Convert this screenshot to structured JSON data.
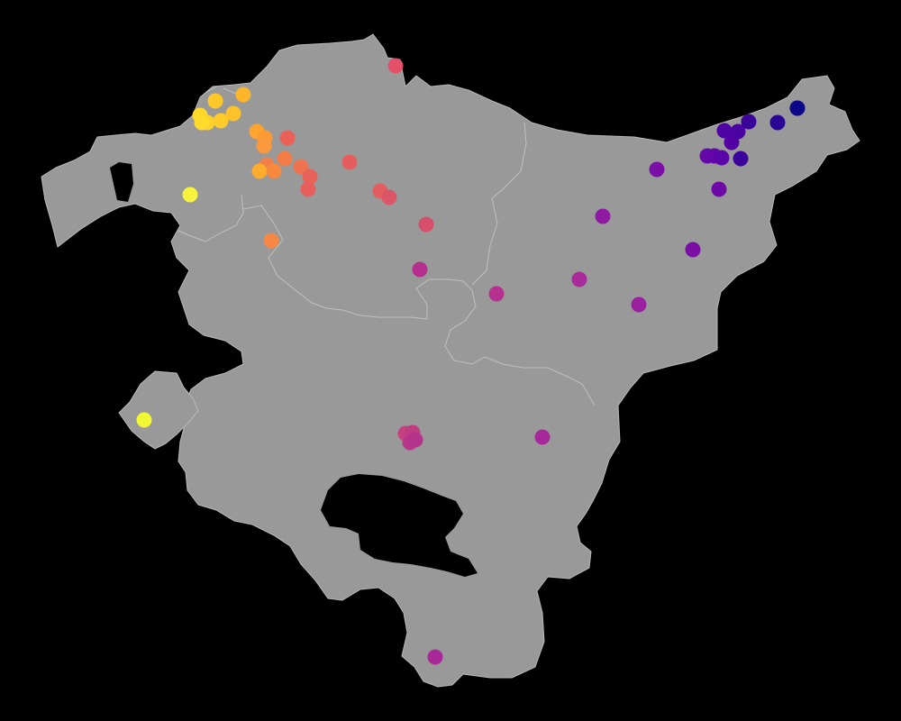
{
  "map": {
    "background": "#000000",
    "land_color": "#999999",
    "border_color": "#c4c4c4",
    "color_scale": "plasma",
    "points": [
      {
        "id": "p01",
        "color": "#e5506b"
      },
      {
        "id": "p02",
        "color": "#fdb52a"
      },
      {
        "id": "p03",
        "color": "#fec82a"
      },
      {
        "id": "p04",
        "color": "#fed82a"
      },
      {
        "id": "p05",
        "color": "#fdd22a"
      },
      {
        "id": "p06",
        "color": "#feda2a"
      },
      {
        "id": "p07",
        "color": "#fdcb2a"
      },
      {
        "id": "p08",
        "color": "#fdc12a"
      },
      {
        "id": "p09",
        "color": "#fda52e"
      },
      {
        "id": "p10",
        "color": "#fc9a36"
      },
      {
        "id": "p11",
        "color": "#fb9a3c"
      },
      {
        "id": "p12",
        "color": "#ea6158"
      },
      {
        "id": "p13",
        "color": "#f18048"
      },
      {
        "id": "p14",
        "color": "#fdad2d"
      },
      {
        "id": "p15",
        "color": "#f88a40"
      },
      {
        "id": "p16",
        "color": "#f47c46"
      },
      {
        "id": "p17",
        "color": "#ef7350"
      },
      {
        "id": "p18",
        "color": "#e7635a"
      },
      {
        "id": "p19",
        "color": "#e65f5c"
      },
      {
        "id": "p20",
        "color": "#e65d5e"
      },
      {
        "id": "p21",
        "color": "#e35d60"
      },
      {
        "id": "p22",
        "color": "#db5568"
      },
      {
        "id": "p23",
        "color": "#d6506c"
      },
      {
        "id": "p24",
        "color": "#f7f23c"
      },
      {
        "id": "p25",
        "color": "#f68744"
      },
      {
        "id": "p26",
        "color": "#b62f8f"
      },
      {
        "id": "p27",
        "color": "#b5308f"
      },
      {
        "id": "p28",
        "color": "#a92b9b"
      },
      {
        "id": "p29",
        "color": "#9a209f"
      },
      {
        "id": "p30",
        "color": "#8e19a2"
      },
      {
        "id": "p31",
        "color": "#7a0ea5"
      },
      {
        "id": "p32",
        "color": "#7a0ea6"
      },
      {
        "id": "p33",
        "color": "#6e09a7"
      },
      {
        "id": "p34",
        "color": "#6508a8"
      },
      {
        "id": "p35",
        "color": "#6306a8"
      },
      {
        "id": "p36",
        "color": "#5b05a8"
      },
      {
        "id": "p37",
        "color": "#5301a5"
      },
      {
        "id": "p38",
        "color": "#4e03a3"
      },
      {
        "id": "p39",
        "color": "#4b03a2"
      },
      {
        "id": "p40",
        "color": "#3c049b"
      },
      {
        "id": "p41",
        "color": "#3a049a"
      },
      {
        "id": "p42",
        "color": "#290593"
      },
      {
        "id": "p43",
        "color": "#170b88"
      },
      {
        "id": "p44",
        "color": "#0d0887"
      },
      {
        "id": "p45",
        "color": "#f1f833"
      },
      {
        "id": "p46",
        "color": "#c5407e"
      },
      {
        "id": "p47",
        "color": "#c03c82"
      },
      {
        "id": "p48",
        "color": "#b9378a"
      },
      {
        "id": "p49",
        "color": "#b5348b"
      },
      {
        "id": "p50",
        "color": "#a72899"
      },
      {
        "id": "p51",
        "color": "#a8289a"
      }
    ]
  }
}
